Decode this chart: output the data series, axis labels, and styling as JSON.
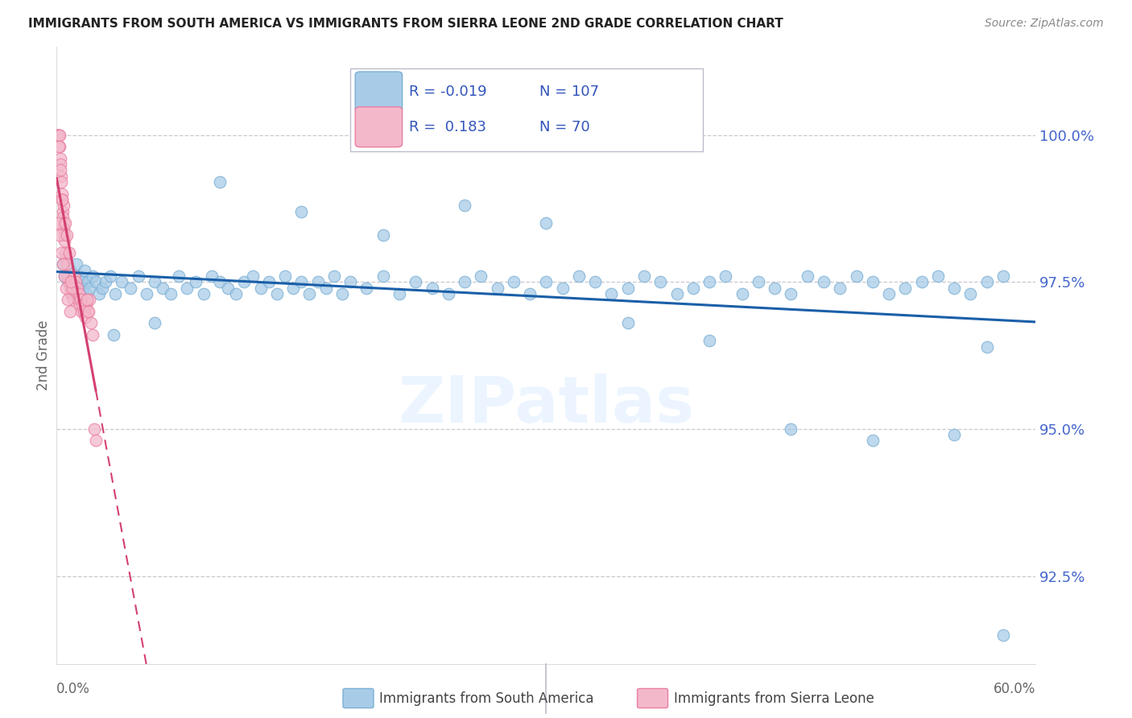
{
  "title": "IMMIGRANTS FROM SOUTH AMERICA VS IMMIGRANTS FROM SIERRA LEONE 2ND GRADE CORRELATION CHART",
  "source": "Source: ZipAtlas.com",
  "ylabel": "2nd Grade",
  "ytick_values": [
    92.5,
    95.0,
    97.5,
    100.0
  ],
  "xmin": 0.0,
  "xmax": 60.0,
  "ymin": 91.0,
  "ymax": 101.5,
  "blue_color": "#a8cce8",
  "blue_edge": "#7aafd4",
  "pink_color": "#f4b8cb",
  "pink_edge": "#e87fa0",
  "trend_blue_color": "#1a5fa8",
  "trend_pink_color": "#d44070",
  "R_blue": -0.019,
  "N_blue": 107,
  "R_pink": 0.183,
  "N_pink": 70,
  "legend_label_blue": "Immigrants from South America",
  "legend_label_pink": "Immigrants from Sierra Leone",
  "watermark": "ZIPatlas",
  "blue_scatter_x": [
    0.4,
    0.5,
    0.6,
    0.7,
    0.8,
    0.9,
    1.0,
    1.1,
    1.2,
    1.3,
    1.4,
    1.5,
    1.6,
    1.7,
    1.8,
    1.9,
    2.0,
    2.2,
    2.4,
    2.6,
    2.8,
    3.0,
    3.3,
    3.6,
    4.0,
    4.5,
    5.0,
    5.5,
    6.0,
    6.5,
    7.0,
    7.5,
    8.0,
    8.5,
    9.0,
    9.5,
    10.0,
    10.5,
    11.0,
    11.5,
    12.0,
    12.5,
    13.0,
    13.5,
    14.0,
    14.5,
    15.0,
    15.5,
    16.0,
    16.5,
    17.0,
    17.5,
    18.0,
    19.0,
    20.0,
    21.0,
    22.0,
    23.0,
    24.0,
    25.0,
    26.0,
    27.0,
    28.0,
    29.0,
    30.0,
    31.0,
    32.0,
    33.0,
    34.0,
    35.0,
    36.0,
    37.0,
    38.0,
    39.0,
    40.0,
    41.0,
    42.0,
    43.0,
    44.0,
    45.0,
    46.0,
    47.0,
    48.0,
    49.0,
    50.0,
    51.0,
    52.0,
    53.0,
    54.0,
    55.0,
    56.0,
    57.0,
    58.0,
    10.0,
    15.0,
    20.0,
    25.0,
    30.0,
    35.0,
    40.0,
    45.0,
    50.0,
    55.0,
    57.0,
    58.0,
    3.5,
    6.0
  ],
  "blue_scatter_y": [
    97.8,
    97.6,
    97.9,
    97.5,
    97.7,
    97.4,
    97.6,
    97.5,
    97.8,
    97.3,
    97.6,
    97.5,
    97.4,
    97.7,
    97.3,
    97.5,
    97.4,
    97.6,
    97.5,
    97.3,
    97.4,
    97.5,
    97.6,
    97.3,
    97.5,
    97.4,
    97.6,
    97.3,
    97.5,
    97.4,
    97.3,
    97.6,
    97.4,
    97.5,
    97.3,
    97.6,
    97.5,
    97.4,
    97.3,
    97.5,
    97.6,
    97.4,
    97.5,
    97.3,
    97.6,
    97.4,
    97.5,
    97.3,
    97.5,
    97.4,
    97.6,
    97.3,
    97.5,
    97.4,
    97.6,
    97.3,
    97.5,
    97.4,
    97.3,
    97.5,
    97.6,
    97.4,
    97.5,
    97.3,
    97.5,
    97.4,
    97.6,
    97.5,
    97.3,
    97.4,
    97.6,
    97.5,
    97.3,
    97.4,
    97.5,
    97.6,
    97.3,
    97.5,
    97.4,
    97.3,
    97.6,
    97.5,
    97.4,
    97.6,
    97.5,
    97.3,
    97.4,
    97.5,
    97.6,
    97.4,
    97.3,
    97.5,
    97.6,
    99.2,
    98.7,
    98.3,
    98.8,
    98.5,
    96.8,
    96.5,
    95.0,
    94.8,
    94.9,
    96.4,
    91.5,
    96.6,
    96.8
  ],
  "pink_scatter_x": [
    0.05,
    0.08,
    0.1,
    0.12,
    0.15,
    0.18,
    0.2,
    0.22,
    0.25,
    0.28,
    0.3,
    0.33,
    0.35,
    0.38,
    0.4,
    0.43,
    0.45,
    0.48,
    0.5,
    0.55,
    0.6,
    0.65,
    0.7,
    0.75,
    0.8,
    0.85,
    0.9,
    0.95,
    1.0,
    1.1,
    1.2,
    1.3,
    1.4,
    1.5,
    1.6,
    1.7,
    1.8,
    1.9,
    2.0,
    0.1,
    0.2,
    0.3,
    0.4,
    0.5,
    0.6,
    0.7,
    0.8,
    0.12,
    0.25,
    0.45,
    0.55,
    0.65,
    0.75,
    1.05,
    1.15,
    1.25,
    1.35,
    1.45,
    1.55,
    1.65,
    1.75,
    1.85,
    1.95,
    0.35,
    0.95,
    0.85,
    2.1,
    2.2,
    2.3,
    2.4
  ],
  "pink_scatter_y": [
    100.0,
    100.0,
    100.0,
    100.0,
    100.0,
    100.0,
    99.8,
    99.6,
    99.5,
    99.3,
    99.2,
    99.0,
    98.9,
    98.7,
    98.6,
    98.5,
    98.4,
    98.3,
    98.2,
    98.0,
    97.9,
    97.8,
    97.6,
    97.5,
    97.4,
    97.3,
    97.5,
    97.3,
    97.2,
    97.4,
    97.3,
    97.2,
    97.1,
    97.0,
    97.2,
    97.0,
    97.1,
    97.0,
    97.2,
    98.5,
    98.3,
    98.0,
    97.8,
    97.6,
    97.4,
    97.2,
    97.0,
    99.8,
    99.4,
    98.8,
    98.5,
    98.3,
    98.0,
    97.6,
    97.5,
    97.4,
    97.3,
    97.2,
    97.1,
    97.0,
    96.9,
    97.2,
    97.0,
    98.9,
    97.4,
    97.5,
    96.8,
    96.6,
    95.0,
    94.8
  ]
}
